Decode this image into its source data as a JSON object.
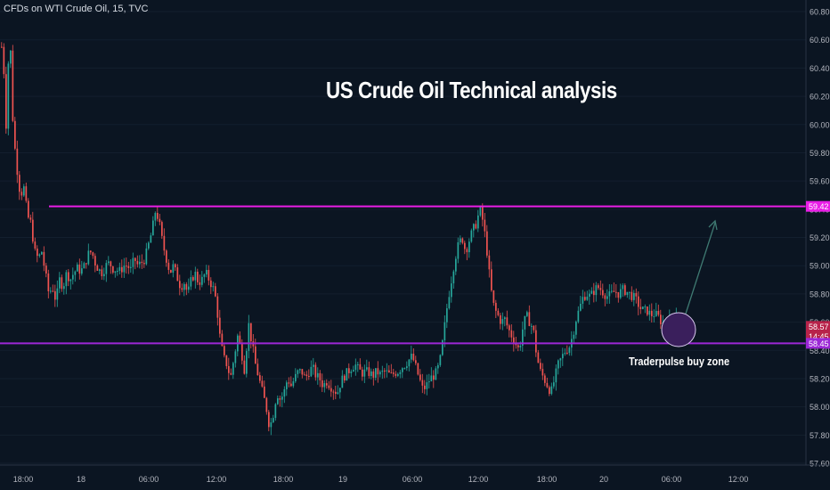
{
  "header": {
    "symbol_line": "CFDs on WTI Crude Oil, 15, TVC"
  },
  "headline": "US Crude Oil Technical analysis",
  "zone_label": "Traderpulse buy zone",
  "colors": {
    "background": "#0b1522",
    "up_candle": "#26a69a",
    "down_candle": "#ef5350",
    "resistance_line": "#e91ee6",
    "support_line": "#9c27d6",
    "buy_zone": "#3a1f5c",
    "arrow": "#3f7a72",
    "axis_text": "#b2b5be"
  },
  "chart_data": {
    "type": "candlestick",
    "y_range": [
      57.5,
      60.85
    ],
    "y_ticks": [
      "60.80",
      "60.60",
      "60.40",
      "60.20",
      "60.00",
      "59.80",
      "59.60",
      "59.40",
      "59.20",
      "59.00",
      "58.80",
      "58.60",
      "58.40",
      "58.20",
      "58.00",
      "57.80",
      "57.60"
    ],
    "x_ticks": [
      "18:00",
      "18",
      "06:00",
      "12:00",
      "18:00",
      "19",
      "06:00",
      "12:00",
      "18:00",
      "20",
      "06:00",
      "12:00"
    ],
    "horizontal_levels": [
      {
        "value": 59.42,
        "label": "59.42",
        "style": "resistance"
      },
      {
        "value": 58.45,
        "label": "58.45",
        "style": "support"
      }
    ],
    "price_tags": [
      {
        "value": 58.57,
        "label": "58.57",
        "style": "last-price"
      },
      {
        "value": 58.5,
        "label": "14:45",
        "style": "countdown"
      }
    ],
    "close_path": [
      [
        0,
        60.6
      ],
      [
        3,
        60.45
      ],
      [
        6,
        60.0
      ],
      [
        10,
        60.7
      ],
      [
        14,
        59.95
      ],
      [
        18,
        59.7
      ],
      [
        22,
        59.5
      ],
      [
        26,
        59.55
      ],
      [
        30,
        59.35
      ],
      [
        34,
        59.3
      ],
      [
        38,
        59.1
      ],
      [
        42,
        59.05
      ],
      [
        46,
        59.1
      ],
      [
        50,
        58.95
      ],
      [
        54,
        58.8
      ],
      [
        58,
        58.85
      ],
      [
        62,
        58.75
      ],
      [
        66,
        58.9
      ],
      [
        70,
        58.85
      ],
      [
        74,
        58.95
      ],
      [
        78,
        58.9
      ],
      [
        82,
        58.95
      ],
      [
        86,
        58.98
      ],
      [
        90,
        58.96
      ],
      [
        94,
        59.0
      ],
      [
        98,
        59.08
      ],
      [
        102,
        59.1
      ],
      [
        106,
        59.02
      ],
      [
        110,
        58.97
      ],
      [
        114,
        58.95
      ],
      [
        118,
        59.0
      ],
      [
        122,
        59.02
      ],
      [
        126,
        58.98
      ],
      [
        130,
        58.97
      ],
      [
        134,
        58.96
      ],
      [
        138,
        59.0
      ],
      [
        142,
        59.0
      ],
      [
        146,
        58.97
      ],
      [
        150,
        59.05
      ],
      [
        154,
        59.0
      ],
      [
        158,
        59.02
      ],
      [
        162,
        59.05
      ],
      [
        166,
        59.15
      ],
      [
        170,
        59.25
      ],
      [
        174,
        59.4
      ],
      [
        178,
        59.3
      ],
      [
        182,
        59.15
      ],
      [
        186,
        59.05
      ],
      [
        190,
        58.95
      ],
      [
        194,
        59.0
      ],
      [
        198,
        58.92
      ],
      [
        202,
        58.85
      ],
      [
        206,
        58.88
      ],
      [
        210,
        58.8
      ],
      [
        214,
        58.9
      ],
      [
        218,
        58.95
      ],
      [
        222,
        58.88
      ],
      [
        226,
        58.9
      ],
      [
        230,
        58.95
      ],
      [
        234,
        58.9
      ],
      [
        238,
        58.85
      ],
      [
        242,
        58.75
      ],
      [
        246,
        58.5
      ],
      [
        250,
        58.35
      ],
      [
        254,
        58.3
      ],
      [
        258,
        58.2
      ],
      [
        262,
        58.35
      ],
      [
        266,
        58.5
      ],
      [
        270,
        58.4
      ],
      [
        274,
        58.25
      ],
      [
        278,
        58.6
      ],
      [
        282,
        58.45
      ],
      [
        286,
        58.3
      ],
      [
        290,
        58.2
      ],
      [
        294,
        58.1
      ],
      [
        298,
        58.0
      ],
      [
        302,
        57.85
      ],
      [
        306,
        57.95
      ],
      [
        310,
        58.1
      ],
      [
        314,
        58.05
      ],
      [
        318,
        58.1
      ],
      [
        322,
        58.2
      ],
      [
        326,
        58.15
      ],
      [
        330,
        58.2
      ],
      [
        334,
        58.25
      ],
      [
        338,
        58.25
      ],
      [
        342,
        58.2
      ],
      [
        346,
        58.25
      ],
      [
        350,
        58.28
      ],
      [
        354,
        58.22
      ],
      [
        358,
        58.2
      ],
      [
        362,
        58.15
      ],
      [
        366,
        58.18
      ],
      [
        370,
        58.15
      ],
      [
        374,
        58.12
      ],
      [
        378,
        58.1
      ],
      [
        382,
        58.18
      ],
      [
        386,
        58.22
      ],
      [
        390,
        58.25
      ],
      [
        394,
        58.28
      ],
      [
        398,
        58.3
      ],
      [
        402,
        58.26
      ],
      [
        406,
        58.24
      ],
      [
        410,
        58.25
      ],
      [
        414,
        58.24
      ],
      [
        418,
        58.22
      ],
      [
        422,
        58.25
      ],
      [
        426,
        58.23
      ],
      [
        430,
        58.25
      ],
      [
        434,
        58.24
      ],
      [
        438,
        58.22
      ],
      [
        442,
        58.24
      ],
      [
        446,
        58.25
      ],
      [
        450,
        58.28
      ],
      [
        454,
        58.3
      ],
      [
        458,
        58.33
      ],
      [
        462,
        58.36
      ],
      [
        466,
        58.28
      ],
      [
        470,
        58.2
      ],
      [
        474,
        58.12
      ],
      [
        478,
        58.15
      ],
      [
        482,
        58.2
      ],
      [
        486,
        58.22
      ],
      [
        490,
        58.25
      ],
      [
        494,
        58.35
      ],
      [
        498,
        58.55
      ],
      [
        502,
        58.75
      ],
      [
        506,
        58.9
      ],
      [
        510,
        59.05
      ],
      [
        514,
        59.15
      ],
      [
        518,
        59.2
      ],
      [
        522,
        59.1
      ],
      [
        526,
        59.18
      ],
      [
        530,
        59.25
      ],
      [
        534,
        59.3
      ],
      [
        538,
        59.4
      ],
      [
        542,
        59.3
      ],
      [
        546,
        59.1
      ],
      [
        550,
        58.85
      ],
      [
        554,
        58.7
      ],
      [
        558,
        58.65
      ],
      [
        562,
        58.6
      ],
      [
        566,
        58.62
      ],
      [
        570,
        58.55
      ],
      [
        574,
        58.5
      ],
      [
        578,
        58.45
      ],
      [
        582,
        58.4
      ],
      [
        586,
        58.55
      ],
      [
        590,
        58.65
      ],
      [
        594,
        58.6
      ],
      [
        598,
        58.55
      ],
      [
        602,
        58.35
      ],
      [
        606,
        58.25
      ],
      [
        610,
        58.2
      ],
      [
        614,
        58.15
      ],
      [
        618,
        58.1
      ],
      [
        622,
        58.2
      ],
      [
        626,
        58.3
      ],
      [
        630,
        58.35
      ],
      [
        634,
        58.4
      ],
      [
        638,
        58.42
      ],
      [
        642,
        58.5
      ],
      [
        646,
        58.62
      ],
      [
        650,
        58.7
      ],
      [
        654,
        58.78
      ],
      [
        658,
        58.8
      ],
      [
        662,
        58.78
      ],
      [
        666,
        58.82
      ],
      [
        670,
        58.85
      ],
      [
        674,
        58.83
      ],
      [
        678,
        58.8
      ],
      [
        682,
        58.78
      ],
      [
        686,
        58.8
      ],
      [
        690,
        58.82
      ],
      [
        694,
        58.8
      ],
      [
        698,
        58.83
      ],
      [
        702,
        58.82
      ],
      [
        706,
        58.8
      ],
      [
        710,
        58.78
      ],
      [
        714,
        58.75
      ],
      [
        718,
        58.7
      ],
      [
        722,
        58.68
      ],
      [
        726,
        58.68
      ],
      [
        730,
        58.65
      ],
      [
        734,
        58.66
      ],
      [
        738,
        58.64
      ],
      [
        742,
        58.6
      ],
      [
        746,
        58.58
      ],
      [
        750,
        58.6
      ],
      [
        754,
        58.65
      ],
      [
        758,
        58.67
      ],
      [
        762,
        58.62
      ],
      [
        766,
        58.6
      ],
      [
        770,
        58.57
      ]
    ]
  }
}
